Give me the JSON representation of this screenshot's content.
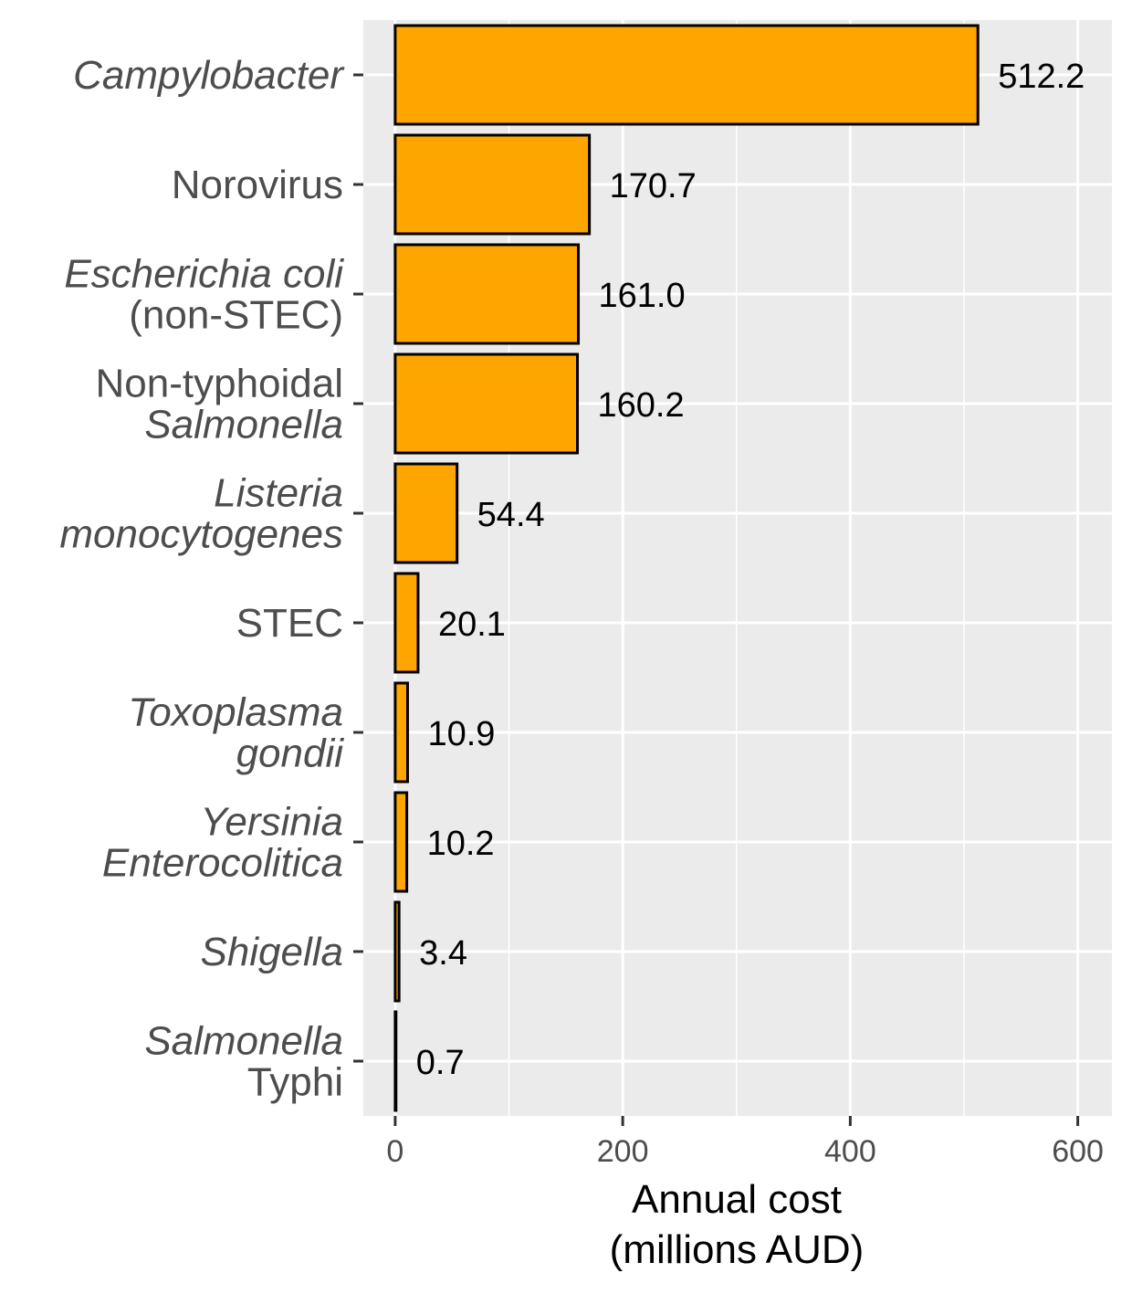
{
  "chart_data": {
    "type": "bar",
    "orientation": "horizontal",
    "categories": [
      {
        "lines": [
          "Campylobacter"
        ],
        "italic": [
          true
        ]
      },
      {
        "lines": [
          "Norovirus"
        ],
        "italic": [
          false
        ]
      },
      {
        "lines": [
          "Escherichia coli",
          "(non-STEC)"
        ],
        "italic": [
          true,
          false
        ]
      },
      {
        "lines": [
          "Non-typhoidal",
          "Salmonella"
        ],
        "italic": [
          false,
          true
        ]
      },
      {
        "lines": [
          "Listeria",
          "monocytogenes"
        ],
        "italic": [
          true,
          true
        ]
      },
      {
        "lines": [
          "STEC"
        ],
        "italic": [
          false
        ]
      },
      {
        "lines": [
          "Toxoplasma",
          "gondii"
        ],
        "italic": [
          true,
          true
        ]
      },
      {
        "lines": [
          "Yersinia",
          "Enterocolitica"
        ],
        "italic": [
          true,
          true
        ]
      },
      {
        "lines": [
          "Shigella"
        ],
        "italic": [
          true
        ]
      },
      {
        "lines": [
          "Salmonella",
          "Typhi"
        ],
        "italic": [
          true,
          false
        ]
      }
    ],
    "values": [
      512.2,
      170.7,
      161.0,
      160.2,
      54.4,
      20.1,
      10.9,
      10.2,
      3.4,
      0.7
    ],
    "value_labels": [
      "512.2",
      "170.7",
      "161.0",
      "160.2",
      "54.4",
      "20.1",
      "10.9",
      "10.2",
      "3.4",
      "0.7"
    ],
    "xlabel": [
      "Annual cost",
      "(millions AUD)"
    ],
    "xlim": [
      -28,
      630
    ],
    "xticks": [
      0,
      200,
      400,
      600
    ],
    "xtick_labels": [
      "0",
      "200",
      "400",
      "600"
    ],
    "grid": true,
    "colors": {
      "bar_fill": "#FFA500",
      "bar_stroke": "#000000",
      "panel_bg": "#EBEBEB",
      "grid": "#FFFFFF"
    }
  }
}
